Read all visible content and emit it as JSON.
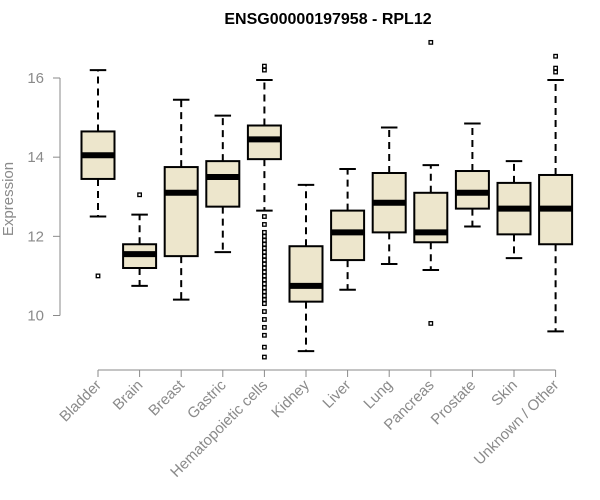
{
  "chart_data": {
    "type": "boxplot",
    "title": "ENSG00000197958 - RPL12",
    "xlabel": "",
    "ylabel": "Expression",
    "ylim": [
      8.7,
      17.1
    ],
    "yticks": [
      "10",
      "12",
      "14",
      "16"
    ],
    "grid": false,
    "legend": "none",
    "colors": {
      "box_fill": "#ede6cc",
      "box_stroke": "#000000",
      "axis": "#8a8a8a"
    },
    "categories": [
      "Bladder",
      "Brain",
      "Breast",
      "Gastric",
      "Hematopoietic cells",
      "Kidney",
      "Liver",
      "Lung",
      "Pancreas",
      "Prostate",
      "Skin",
      "Unknown / Other"
    ],
    "boxes": [
      {
        "category": "Bladder",
        "whisker_low": 12.5,
        "q1": 13.45,
        "median": 14.05,
        "q3": 14.65,
        "whisker_high": 16.2,
        "outliers": [
          11.0
        ]
      },
      {
        "category": "Brain",
        "whisker_low": 10.75,
        "q1": 11.2,
        "median": 11.55,
        "q3": 11.8,
        "whisker_high": 12.55,
        "outliers": [
          13.05
        ]
      },
      {
        "category": "Breast",
        "whisker_low": 10.4,
        "q1": 11.5,
        "median": 13.1,
        "q3": 13.75,
        "whisker_high": 15.45,
        "outliers": []
      },
      {
        "category": "Gastric",
        "whisker_low": 11.6,
        "q1": 12.75,
        "median": 13.5,
        "q3": 13.9,
        "whisker_high": 15.05,
        "outliers": []
      },
      {
        "category": "Hematopoietic cells",
        "whisker_low": 12.65,
        "q1": 13.95,
        "median": 14.45,
        "q3": 14.8,
        "whisker_high": 15.95,
        "outliers": [
          16.3,
          16.2,
          12.5,
          12.3,
          12.1,
          12.0,
          11.9,
          11.8,
          11.7,
          11.6,
          11.5,
          11.4,
          11.3,
          11.2,
          11.1,
          11.0,
          10.9,
          10.8,
          10.7,
          10.6,
          10.5,
          10.4,
          10.3,
          10.1,
          9.9,
          9.7,
          9.5,
          9.2,
          8.95
        ]
      },
      {
        "category": "Kidney",
        "whisker_low": 9.1,
        "q1": 10.35,
        "median": 10.75,
        "q3": 11.75,
        "whisker_high": 13.3,
        "outliers": []
      },
      {
        "category": "Liver",
        "whisker_low": 10.65,
        "q1": 11.4,
        "median": 12.1,
        "q3": 12.65,
        "whisker_high": 13.7,
        "outliers": []
      },
      {
        "category": "Lung",
        "whisker_low": 11.3,
        "q1": 12.1,
        "median": 12.85,
        "q3": 13.6,
        "whisker_high": 14.75,
        "outliers": []
      },
      {
        "category": "Pancreas",
        "whisker_low": 11.15,
        "q1": 11.85,
        "median": 12.1,
        "q3": 13.1,
        "whisker_high": 13.8,
        "outliers": [
          16.9,
          9.8
        ]
      },
      {
        "category": "Prostate",
        "whisker_low": 12.25,
        "q1": 12.7,
        "median": 13.1,
        "q3": 13.65,
        "whisker_high": 14.85,
        "outliers": []
      },
      {
        "category": "Skin",
        "whisker_low": 11.45,
        "q1": 12.05,
        "median": 12.7,
        "q3": 13.35,
        "whisker_high": 13.9,
        "outliers": []
      },
      {
        "category": "Unknown / Other",
        "whisker_low": 9.6,
        "q1": 11.8,
        "median": 12.7,
        "q3": 13.55,
        "whisker_high": 15.95,
        "outliers": [
          16.55,
          16.25,
          16.15
        ]
      }
    ]
  }
}
